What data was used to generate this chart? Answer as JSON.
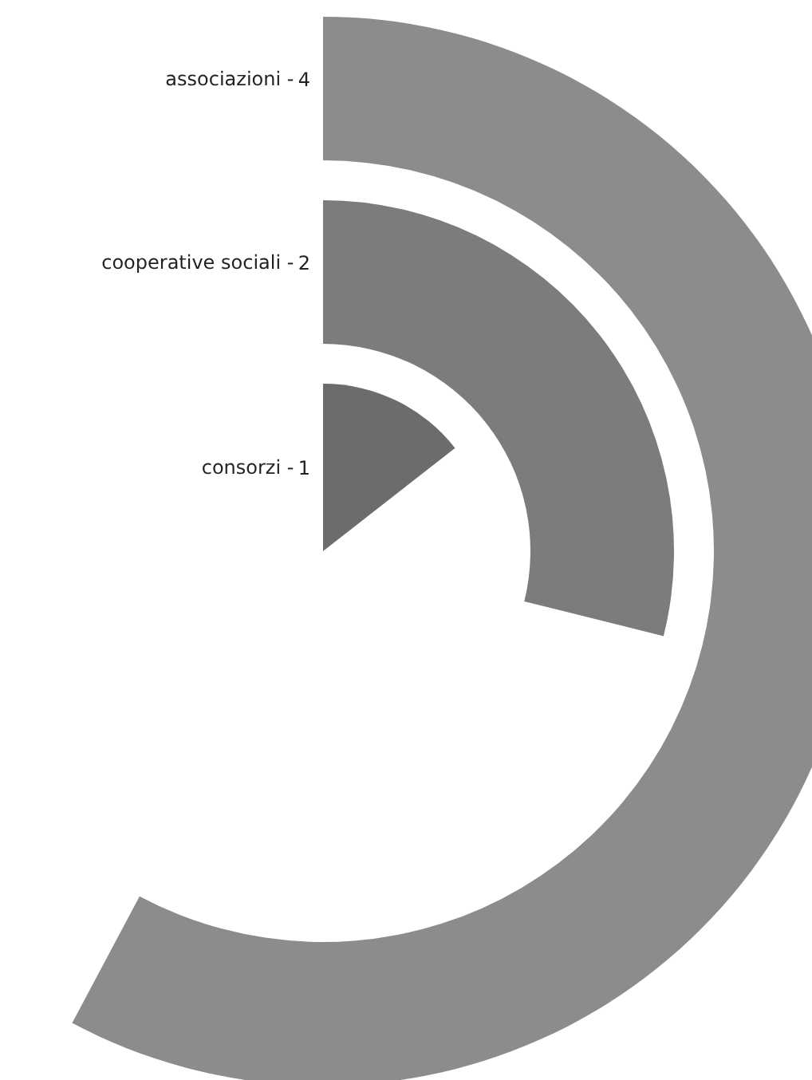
{
  "chart_data": {
    "type": "other",
    "categories": [
      "associazioni -",
      "cooperative sociali -",
      "consorzi -"
    ],
    "values": [
      4,
      2,
      1
    ],
    "colors": [
      "#8c8c8c",
      "#7c7c7c",
      "#6c6c6c"
    ],
    "data_labels": true
  }
}
